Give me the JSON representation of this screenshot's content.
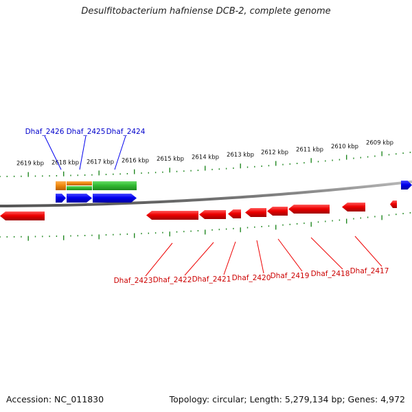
{
  "title": "Desulfitobacterium hafniense DCB-2, complete genome",
  "footer": {
    "accession": "Accession: NC_011830",
    "summary": "Topology: circular; Length: 5,279,134 bp; Genes: 4,972"
  },
  "colors": {
    "forward_gene": "#0000ee",
    "reverse_gene": "#ee0000",
    "orange_feature": "#f08a10",
    "green_feature": "#33bb33",
    "tick": "#228822",
    "backbone": "#888888"
  },
  "tick_labels": [
    "2619 kbp",
    "2618 kbp",
    "2617 kbp",
    "2616 kbp",
    "2615 kbp",
    "2614 kbp",
    "2613 kbp",
    "2612 kbp",
    "2611 kbp",
    "2610 kbp",
    "2609 kbp"
  ],
  "forward_genes": [
    "Dhaf_2426",
    "Dhaf_2425",
    "Dhaf_2424"
  ],
  "reverse_genes": [
    "Dhaf_2423",
    "Dhaf_2422",
    "Dhaf_2421",
    "Dhaf_2420",
    "Dhaf_2419",
    "Dhaf_2418",
    "Dhaf_2417"
  ]
}
